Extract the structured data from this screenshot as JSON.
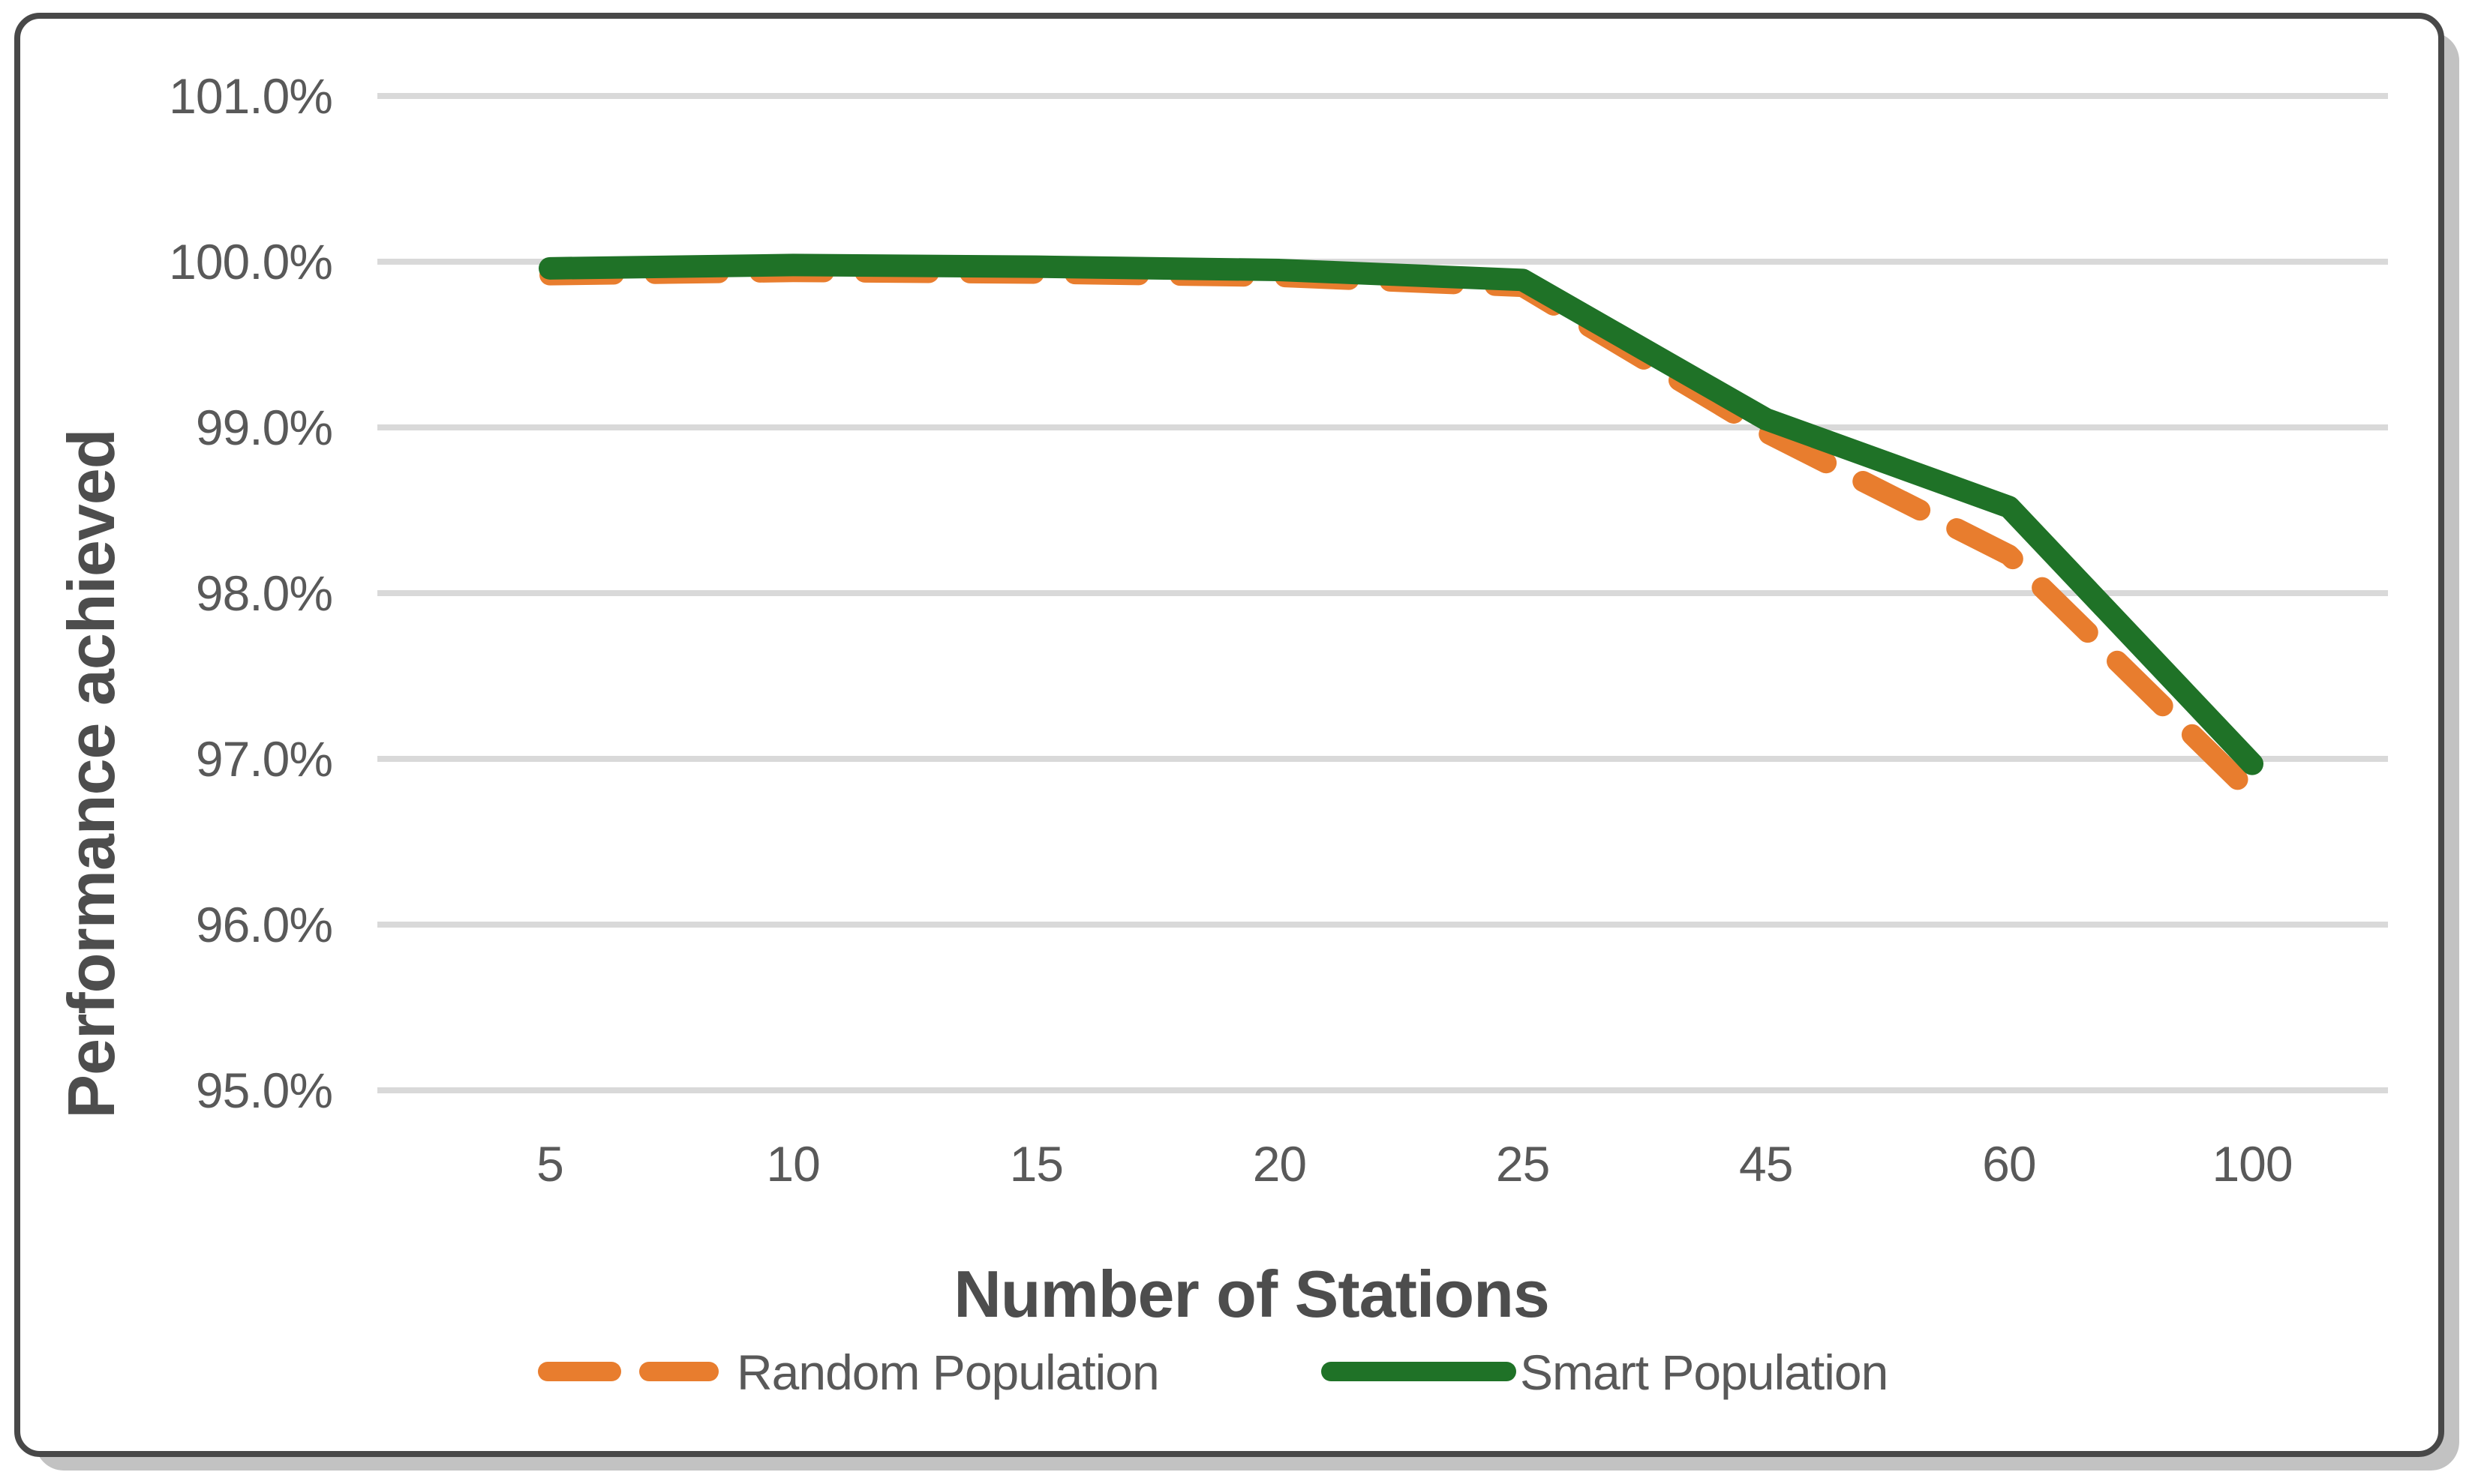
{
  "chart_data": {
    "type": "line",
    "title": "",
    "xlabel": "Number of Stations",
    "ylabel": "Performance achieved",
    "categories": [
      "5",
      "10",
      "15",
      "20",
      "25",
      "45",
      "60",
      "100"
    ],
    "series": [
      {
        "name": "Random Population",
        "color": "#E87D2E",
        "line_style": "dashed",
        "values": [
          99.92,
          99.94,
          99.93,
          99.91,
          99.85,
          98.97,
          98.23,
          96.79
        ]
      },
      {
        "name": "Smart Population",
        "color": "#1F7227",
        "line_style": "solid",
        "values": [
          99.96,
          99.98,
          99.97,
          99.95,
          99.89,
          99.05,
          98.52,
          96.97
        ]
      }
    ],
    "y_axis": {
      "min": 95.0,
      "max": 101.0,
      "step": 1.0,
      "tick_labels": [
        "101.0%",
        "100.0%",
        "99.0%",
        "98.0%",
        "97.0%",
        "96.0%",
        "95.0%"
      ]
    },
    "grid": true,
    "legend_position": "bottom",
    "colors": {
      "gridline": "#D9D9D9",
      "tick_text": "#595959",
      "axis_title_text": "#4D4D4D",
      "card_border": "#484848",
      "card_shadow": "#C2C2C2",
      "background": "#FFFFFF"
    }
  }
}
